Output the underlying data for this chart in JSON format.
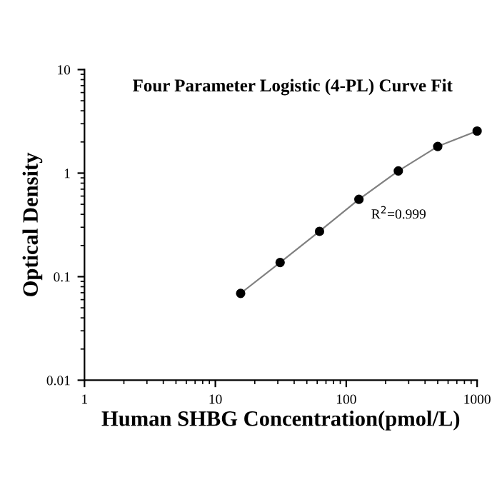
{
  "chart_data": {
    "type": "scatter",
    "title": "Four Parameter Logistic (4-PL) Curve Fit",
    "xlabel": "Human SHBG Concentration(pmol/L)",
    "ylabel": "Optical Density",
    "log": "xy",
    "grid": false,
    "marker": "circle",
    "x": [
      15.6,
      31.25,
      62.5,
      125,
      250,
      500,
      1000
    ],
    "series": [
      {
        "type": "line",
        "color": "#808080",
        "line_style": "solid",
        "marker": "none",
        "values": [
          0.069,
          0.137,
          0.274,
          0.558,
          1.05,
          1.81,
          2.55
        ]
      },
      {
        "color": "#000000",
        "values": [
          0.069,
          0.137,
          0.274,
          0.558,
          1.05,
          1.81,
          2.55
        ]
      }
    ],
    "xlim": [
      1,
      1000
    ],
    "ylim": [
      0.01,
      10
    ],
    "xticks": [
      1,
      10,
      100,
      1000
    ],
    "yticks": [
      0.01,
      0.1,
      1,
      10
    ],
    "annotations": [
      "R$^{2}$=0.999"
    ]
  }
}
